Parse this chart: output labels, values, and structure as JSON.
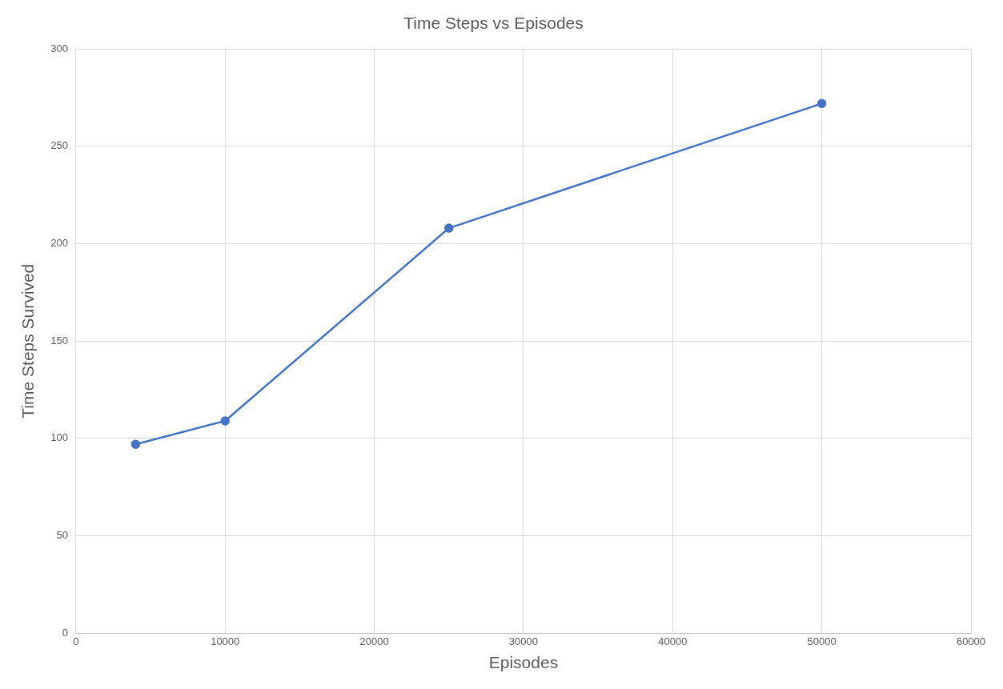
{
  "chart_data": {
    "type": "line",
    "title": "Time Steps vs Episodes",
    "xlabel": "Episodes",
    "ylabel": "Time Steps Survived",
    "x": [
      4000,
      10000,
      25000,
      50000
    ],
    "series": [
      {
        "color": "#4472c4",
        "values": [
          97,
          109,
          208,
          272
        ]
      }
    ],
    "xlim": [
      0,
      60000
    ],
    "xticks": [
      0,
      10000,
      20000,
      30000,
      40000,
      50000,
      60000
    ],
    "ylim": [
      0,
      300
    ],
    "yticks": [
      0,
      50,
      100,
      150,
      200,
      250,
      300
    ],
    "grid": true,
    "legend": false,
    "marker": "circle",
    "line_style": "solid"
  }
}
